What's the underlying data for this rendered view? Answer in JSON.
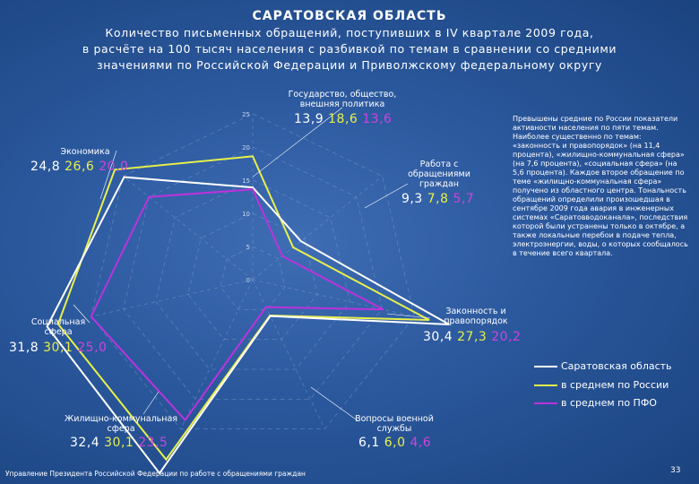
{
  "title": "САРАТОВСКАЯ ОБЛАСТЬ",
  "subtitle": "Количество письменных обращений, поступивших в IV квартале 2009 года,\nв расчёте на 100 тысяч населения с разбивкой по темам в сравнении со средними\nзначениями по Российской Федерации и Приволжскому федеральному округу",
  "side_text": "Превышены средние по России показатели активности населения по пяти темам. Наиболее существенно по темам: «законность и правопорядок» (на 11,4 процента), «жилищно-коммунальная сфера» (на 7,6 процента), «социальная сфера» (на 5,6 процента). Каждое второе обращение по теме «жилищно-коммунальная сфера» получено из областного центра. Тональность обращений определили произошедшая в сентябре 2009 года авария в инженерных системах «Саратовводоканала», последствия которой были устранены только в октябре, а также локальные перебои в подаче тепла, электроэнергии, воды, о которых сообщалось в течение всего квартала.",
  "footer": "Управление Президента Российской Федерации по работе с обращениями граждан",
  "page_number": "33",
  "chart_data": {
    "type": "radar",
    "axes": [
      {
        "label": "Государство, общество,\nвнешняя политика",
        "values_text": [
          "13,9",
          "18,6",
          "13,6"
        ]
      },
      {
        "label": "Работа с\nобращениями\nграждан",
        "values_text": [
          "9,3",
          "7,8",
          "5,7"
        ]
      },
      {
        "label": "Законность и\nправопорядок",
        "values_text": [
          "30,4",
          "27,3",
          "20,2"
        ]
      },
      {
        "label": "Вопросы военной\nслужбы",
        "values_text": [
          "6,1",
          "6,0",
          "4,6"
        ]
      },
      {
        "label": "Жилищно-коммунальная\nсфера",
        "values_text": [
          "32,4",
          "30,1",
          "23,5"
        ]
      },
      {
        "label": "Социальная\nсфера",
        "values_text": [
          "31,8",
          "30,1",
          "25,0"
        ]
      },
      {
        "label": "Экономика",
        "values_text": [
          "24,8",
          "26,6",
          "20,0"
        ]
      }
    ],
    "series": [
      {
        "name": "Саратовская область",
        "color": "#ffffff",
        "values": [
          13.9,
          9.3,
          30.4,
          6.1,
          32.4,
          31.8,
          24.8
        ]
      },
      {
        "name": "в среднем по России",
        "color": "#e8f04a",
        "values": [
          18.6,
          7.8,
          27.3,
          6.0,
          30.1,
          30.1,
          26.6
        ]
      },
      {
        "name": "в среднем по ПФО",
        "color": "#bb33dd",
        "values": [
          13.6,
          5.7,
          20.2,
          4.6,
          23.5,
          25.0,
          20.0
        ]
      }
    ],
    "ticks": [
      "0",
      "5",
      "10",
      "15",
      "20",
      "25"
    ],
    "scale_max": 25
  }
}
